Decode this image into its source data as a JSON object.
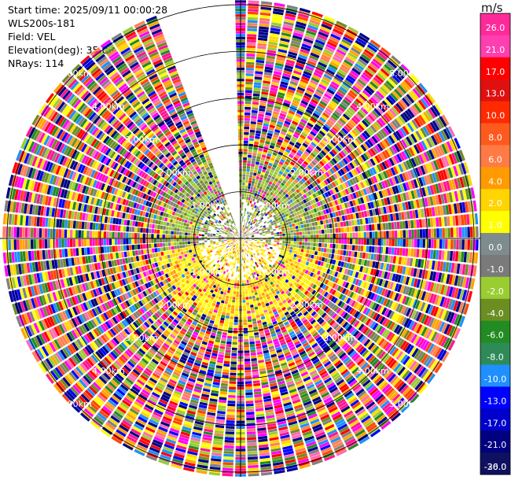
{
  "header": {
    "start_time": "Start time: 2025/09/11 00:00:28",
    "instrument": "WLS200s-181",
    "field": "Field: VEL",
    "elevation": "Elevation(deg): 35.00",
    "nrays": "NRays: 114"
  },
  "colorbar": {
    "unit": "m/s",
    "ticks": [
      "26.0",
      "21.0",
      "17.0",
      "13.0",
      "10.0",
      "8.0",
      "6.0",
      "4.0",
      "2.0",
      "1.0",
      "0.0",
      "-1.0",
      "-2.0",
      "-4.0",
      "-6.0",
      "-8.0",
      "-10.0",
      "-13.0",
      "-17.0",
      "-21.0",
      "-26.0",
      "-30.0"
    ],
    "colors": [
      "#ff2a9a",
      "#ff3fb0",
      "#ff0000",
      "#e01010",
      "#ff2a00",
      "#ff5a1e",
      "#ff7a45",
      "#ff9a00",
      "#ffd400",
      "#ffff00",
      "#7f8c8d",
      "#7a7a7a",
      "#9acd32",
      "#6b8e23",
      "#228b22",
      "#2e8b57",
      "#1e90ff",
      "#0000ff",
      "#0000cd",
      "#000080",
      "#101060"
    ]
  },
  "chart_data": {
    "type": "heatmap",
    "subtype": "polar PPI scan",
    "field": "VEL",
    "units": "m/s",
    "range_rings_km": [
      1,
      2,
      3,
      4,
      5
    ],
    "range_ring_labels": [
      "1.00km",
      "2.00km",
      "3.00km",
      "4.00km",
      "5.00km"
    ],
    "max_range_km": 5.1,
    "n_rays": 114,
    "data_gap_azimuth_deg": [
      338,
      360
    ],
    "near_field_pattern": "positive velocities (yellow/orange) to the south, near-zero/negative (green/olive) to the north within ~1.5 km; noisy full-range values beyond"
  }
}
